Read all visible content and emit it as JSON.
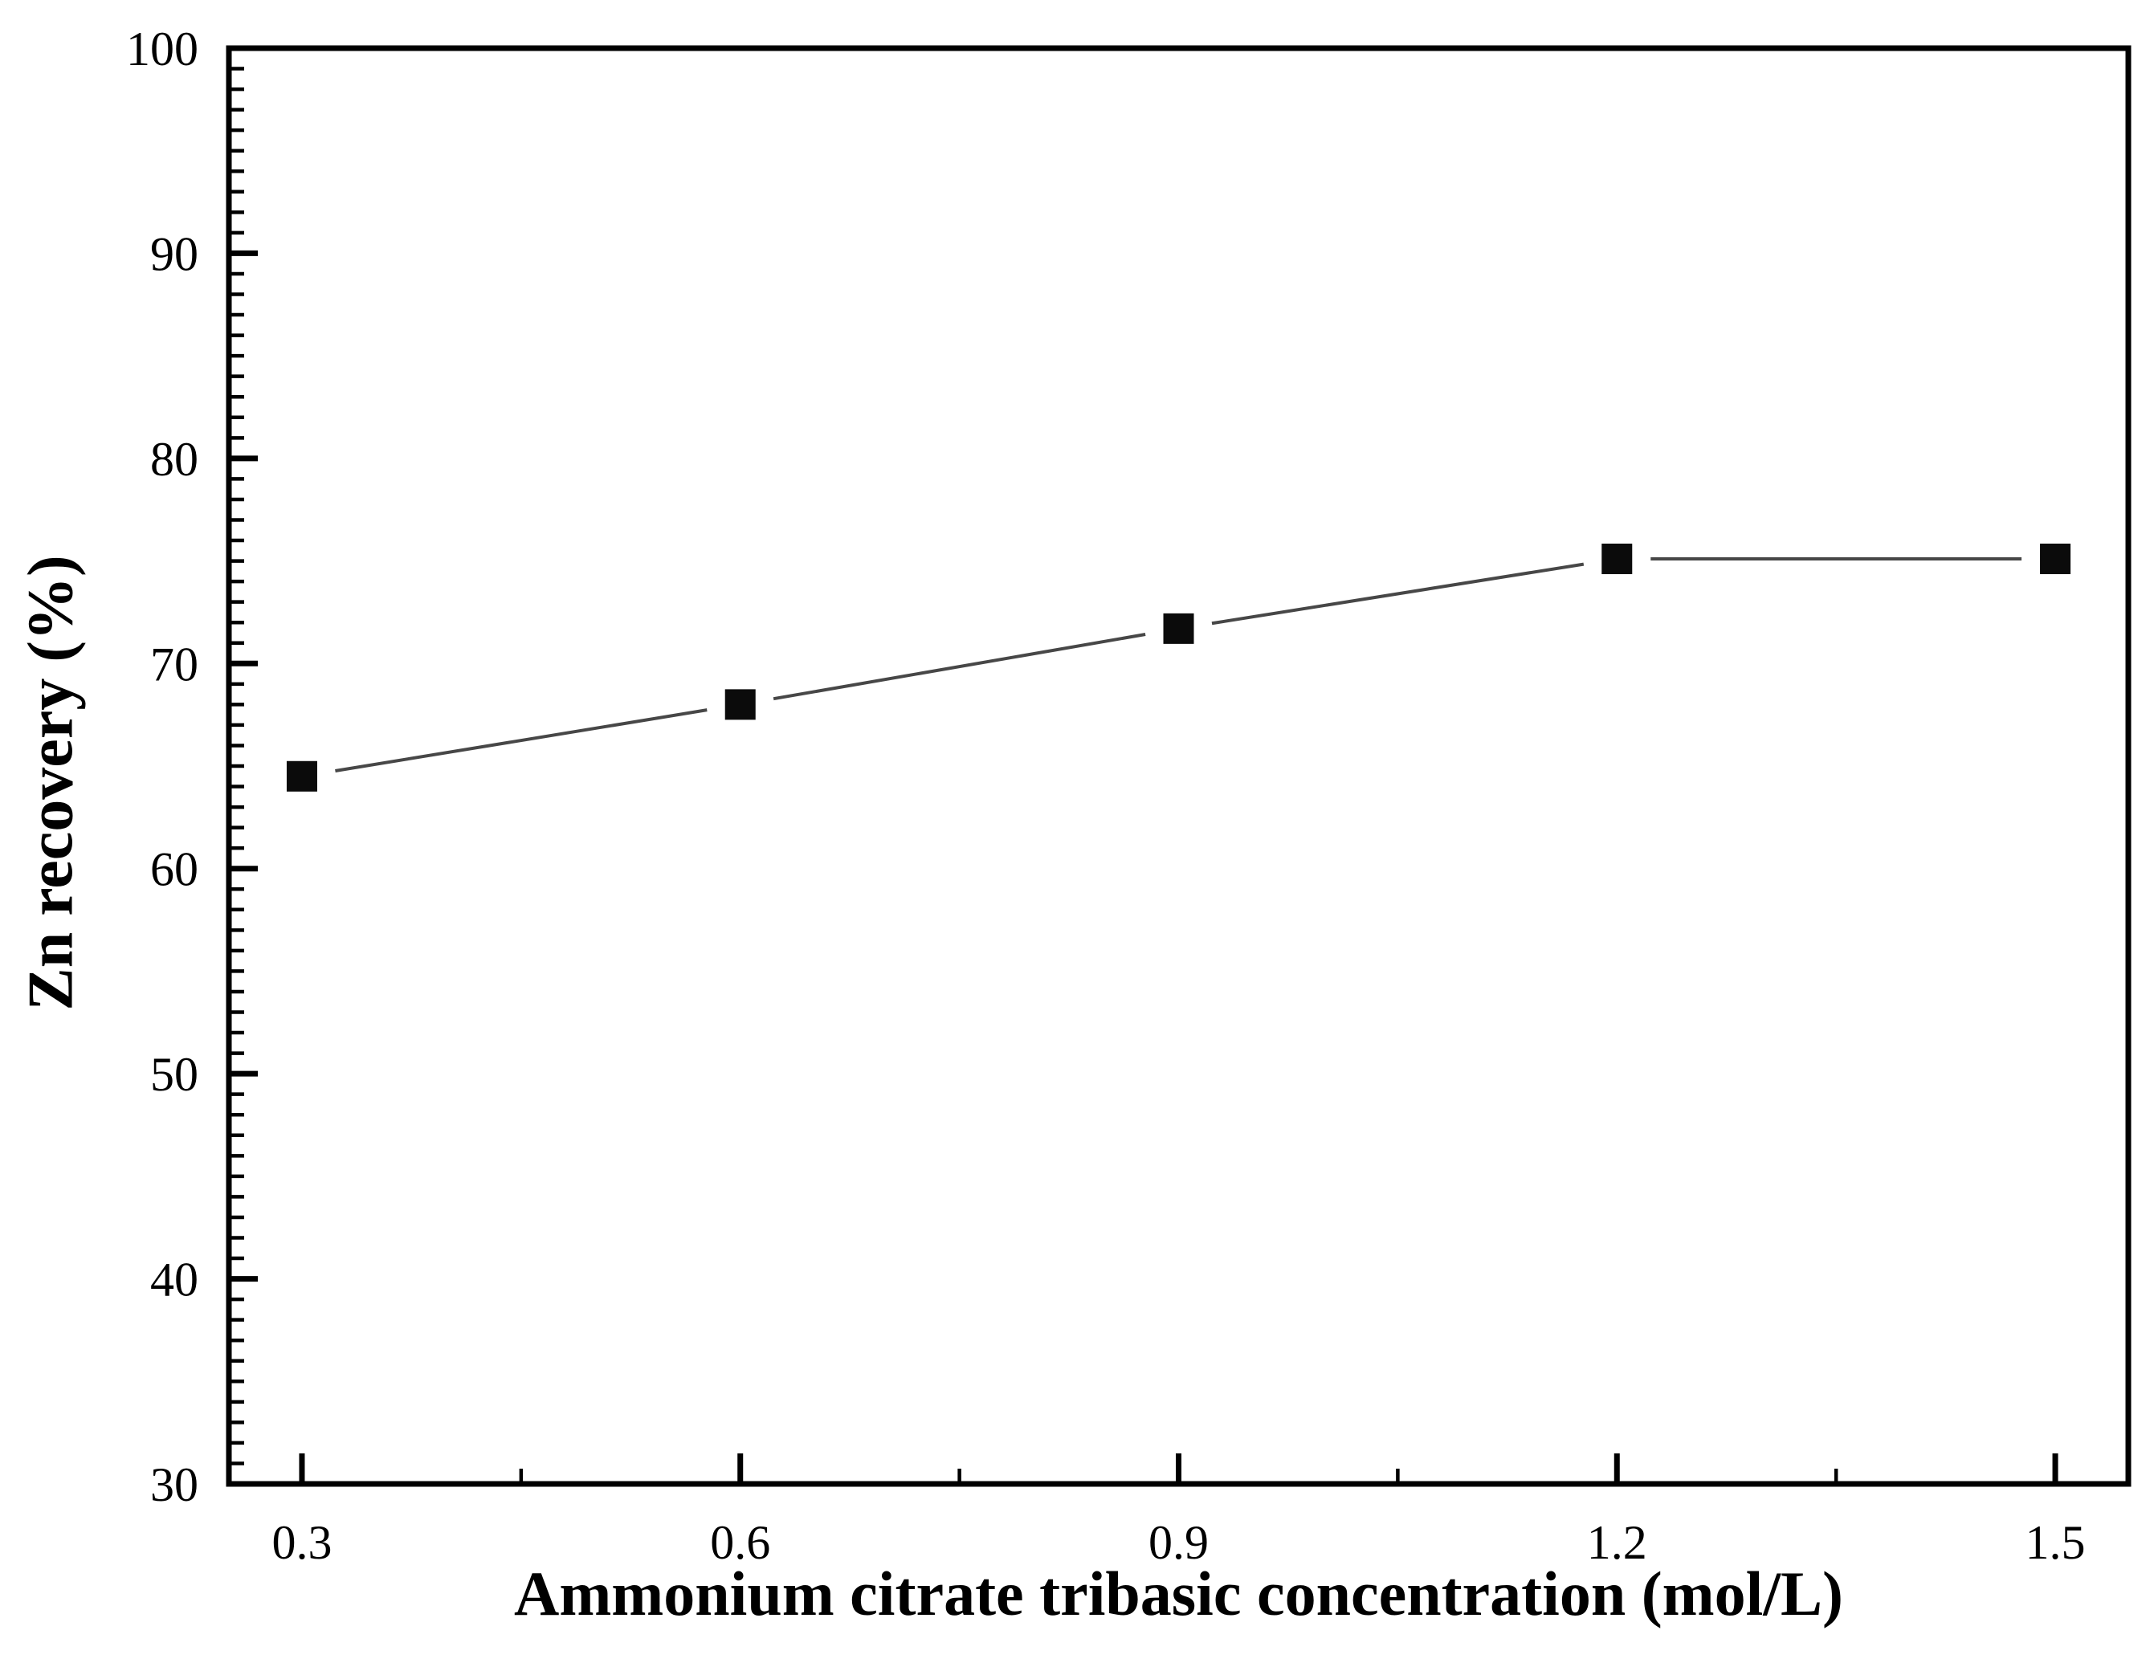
{
  "figure": {
    "background": "#ffffff"
  },
  "chart_data": {
    "type": "line",
    "title": "",
    "xlabel": "Ammonium citrate tribasic concentration (mol/L)",
    "ylabel": "Zn recovery (%)",
    "x": [
      0.3,
      0.6,
      0.9,
      1.2,
      1.5
    ],
    "series": [
      {
        "name": "Zn recovery",
        "marker": "filled-square",
        "values": [
          64.5,
          68.0,
          71.7,
          75.1,
          75.1
        ]
      }
    ],
    "xlim": [
      0.25,
      1.55
    ],
    "ylim": [
      30,
      100
    ],
    "x_ticks": [
      0.3,
      0.6,
      0.9,
      1.2,
      1.5
    ],
    "x_tick_labels": [
      "0.3",
      "0.6",
      "0.9",
      "1.2",
      "1.5"
    ],
    "x_minor_ticks": [
      0.45,
      0.75,
      1.05,
      1.35
    ],
    "y_ticks": [
      30,
      40,
      50,
      60,
      70,
      80,
      90,
      100
    ],
    "y_tick_labels": [
      "30",
      "40",
      "50",
      "60",
      "70",
      "80",
      "90",
      "100"
    ],
    "y_minor_step": 1,
    "grid": false,
    "legend": "none",
    "tick_style": "inside",
    "axis_color": "#000000",
    "line_color": "#474747",
    "marker_color": "#0b0b0b"
  }
}
